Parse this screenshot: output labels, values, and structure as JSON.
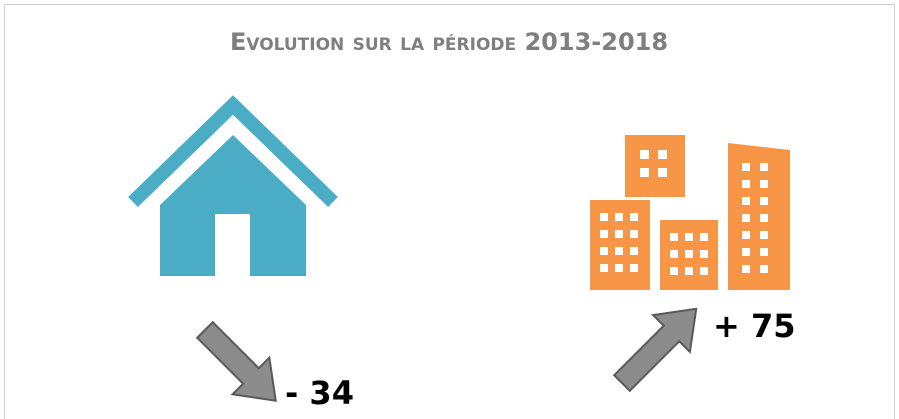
{
  "title": "Evolution sur la période 2013-2018",
  "items": [
    {
      "label": "- 34"
    },
    {
      "label": "+ 75"
    }
  ]
}
